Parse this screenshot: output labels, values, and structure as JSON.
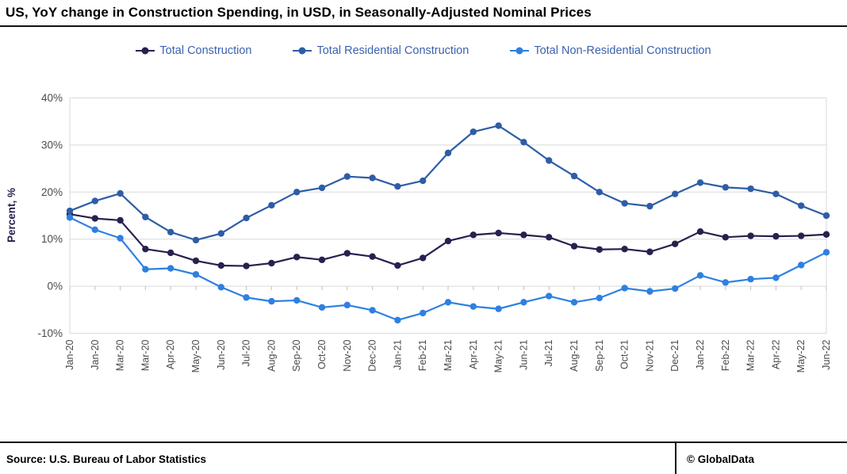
{
  "header": {
    "title": "US, YoY change in Construction Spending, in USD, in Seasonally-Adjusted Nominal Prices"
  },
  "chart_data": {
    "type": "line",
    "title": "US, YoY change in Construction Spending, in USD, in Seasonally-Adjusted Nominal Prices",
    "xlabel": "",
    "ylabel": "Percent, %",
    "ylim": [
      -10,
      40
    ],
    "ytick_step": 10,
    "ytick_suffix": "%",
    "grid": true,
    "legend_position": "top",
    "categories": [
      "Jan-20",
      "Jan-20",
      "Mar-20",
      "Mar-20",
      "Apr-20",
      "May-20",
      "Jun-20",
      "Jul-20",
      "Aug-20",
      "Sep-20",
      "Oct-20",
      "Nov-20",
      "Dec-20",
      "Jan-21",
      "Feb-21",
      "Mar-21",
      "Apr-21",
      "May-21",
      "Jun-21",
      "Jul-21",
      "Aug-21",
      "Sep-21",
      "Oct-21",
      "Nov-21",
      "Dec-21",
      "Jan-22",
      "Feb-22",
      "Mar-22",
      "Apr-22",
      "May-22",
      "Jun-22"
    ],
    "series": [
      {
        "name": "Total Construction",
        "color": "#29204e",
        "values": [
          15.3,
          14.4,
          14.0,
          7.9,
          7.1,
          5.4,
          4.4,
          4.3,
          4.9,
          6.2,
          5.6,
          7.0,
          6.3,
          4.4,
          6.0,
          9.6,
          10.9,
          11.3,
          10.9,
          10.4,
          8.5,
          7.8,
          7.9,
          7.3,
          9.0,
          11.6,
          10.4,
          10.7,
          10.6,
          10.7,
          11.0
        ]
      },
      {
        "name": "Total Residential Construction",
        "color": "#2e5da6",
        "values": [
          16.0,
          18.1,
          19.7,
          14.7,
          11.5,
          9.8,
          11.2,
          14.5,
          17.2,
          20.0,
          20.9,
          23.3,
          23.0,
          21.2,
          22.4,
          28.3,
          32.8,
          34.1,
          30.6,
          26.7,
          23.4,
          20.0,
          17.6,
          17.0,
          19.6,
          22.0,
          21.0,
          20.7,
          19.6,
          17.1,
          15.0
        ]
      },
      {
        "name": "Total Non-Residential Construction",
        "color": "#2e80e1",
        "values": [
          14.6,
          12.0,
          10.2,
          3.6,
          3.8,
          2.5,
          -0.2,
          -2.4,
          -3.2,
          -3.0,
          -4.5,
          -4.0,
          -5.1,
          -7.2,
          -5.7,
          -3.4,
          -4.3,
          -4.8,
          -3.4,
          -2.1,
          -3.4,
          -2.5,
          -0.4,
          -1.1,
          -0.5,
          2.3,
          0.8,
          1.5,
          1.8,
          4.5,
          7.2
        ]
      }
    ]
  },
  "footer": {
    "source": "Source:  U.S. Bureau of Labor Statistics",
    "copyright": "© GlobalData"
  }
}
